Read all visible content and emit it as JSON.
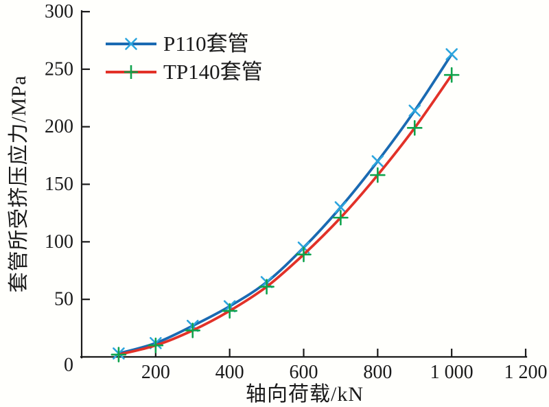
{
  "figure": {
    "background": "#fffffc",
    "text_color": "#1a1a1a"
  },
  "chart_data": {
    "type": "line",
    "title": "",
    "xlabel": "轴向荷载/kN",
    "ylabel": "套管所受挤压应力/MPa",
    "xlim": [
      0,
      1200
    ],
    "ylim": [
      0,
      300
    ],
    "grid": false,
    "legend_position": "top-left-inside",
    "axis_color": "#1a1a1a",
    "x": [
      100,
      200,
      300,
      400,
      500,
      600,
      700,
      800,
      900,
      1000
    ],
    "series": [
      {
        "name": "P110套管",
        "line_color": "#1a6ab2",
        "marker": "x",
        "marker_color": "#2ca5de",
        "values": [
          3,
          12,
          27,
          44,
          65,
          95,
          130,
          170,
          214,
          263
        ]
      },
      {
        "name": "TP140套管",
        "line_color": "#e23128",
        "marker": "+",
        "marker_color": "#0fa34c",
        "values": [
          2,
          10,
          23,
          40,
          61,
          89,
          121,
          158,
          199,
          245
        ]
      }
    ],
    "x_ticks": {
      "values": [
        200,
        400,
        600,
        800,
        1000,
        1200
      ],
      "labels": [
        "200",
        "400",
        "600",
        "800",
        "1 000",
        "1 200"
      ]
    },
    "y_ticks": {
      "values": [
        0,
        50,
        100,
        150,
        200,
        250,
        300
      ],
      "labels": [
        "0",
        "50",
        "100",
        "150",
        "200",
        "250",
        "300"
      ]
    }
  }
}
